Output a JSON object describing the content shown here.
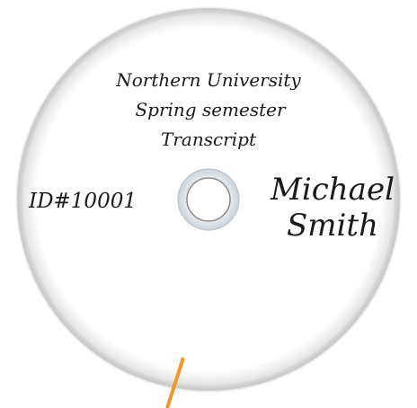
{
  "disc": {
    "lines": [
      "Northern University",
      "Spring semester",
      "Transcript"
    ],
    "id": "ID#10001",
    "name": [
      "Michael",
      "Smith"
    ]
  }
}
